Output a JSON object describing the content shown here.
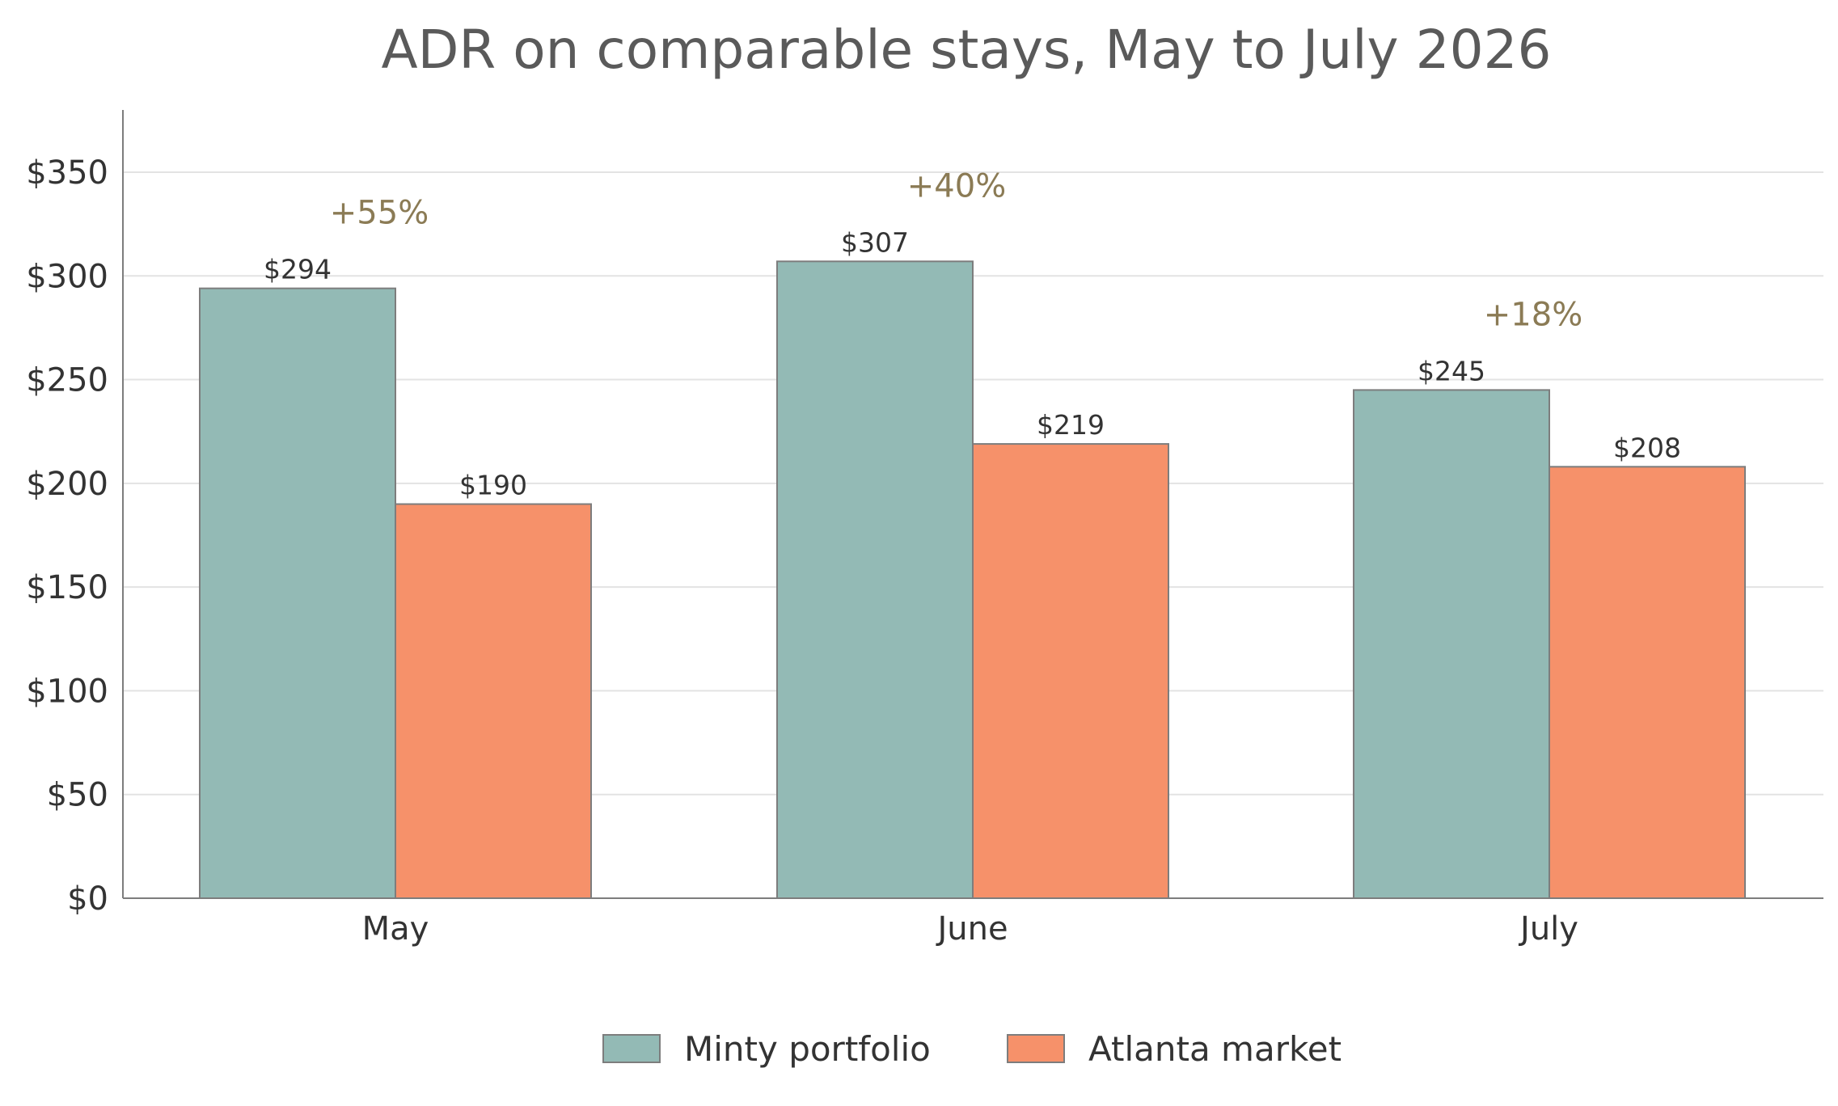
{
  "chart_data": {
    "type": "bar",
    "title": "ADR on comparable stays, May to July 2026",
    "categories": [
      "May",
      "June",
      "July"
    ],
    "series": [
      {
        "name": "Minty portfolio",
        "values": [
          294,
          307,
          245
        ],
        "labels": [
          "$294",
          "$307",
          "$245"
        ],
        "color": "#93bab5"
      },
      {
        "name": "Atlanta market",
        "values": [
          190,
          219,
          208
        ],
        "labels": [
          "$190",
          "$219",
          "$208"
        ],
        "color": "#f6916a"
      }
    ],
    "annotations": [
      "+55%",
      "+40%",
      "+18%"
    ],
    "annotation_color": "#8b7b55",
    "ylim": [
      0,
      380
    ],
    "yticks": [
      0,
      50,
      100,
      150,
      200,
      250,
      300,
      350
    ],
    "ytick_labels": [
      "$0",
      "$50",
      "$100",
      "$150",
      "$200",
      "$250",
      "$300",
      "$350"
    ],
    "xlabel": "",
    "ylabel": "",
    "grid": true,
    "legend_position": "bottom-center"
  }
}
